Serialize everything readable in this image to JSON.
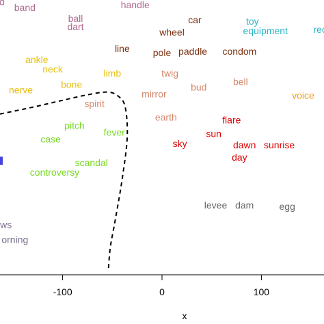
{
  "chart_data": {
    "type": "scatter",
    "xlabel": "x",
    "xlim": [
      -163,
      163
    ],
    "ylim": [
      -100,
      100
    ],
    "x_ticks": [
      -100,
      0,
      100
    ],
    "x_tick_labels": [
      "-100",
      "0",
      "100"
    ],
    "boundary_style": "dashed",
    "points": [
      {
        "label": "d",
        "x": -161,
        "y": 98,
        "color": "#b06a8f"
      },
      {
        "label": "band",
        "x": -138,
        "y": 94,
        "color": "#b06a8f"
      },
      {
        "label": "handle",
        "x": -27,
        "y": 96,
        "color": "#b06a8f"
      },
      {
        "label": "ball",
        "x": -87,
        "y": 86,
        "color": "#b06a8f"
      },
      {
        "label": "dart",
        "x": -87,
        "y": 80,
        "color": "#b06a8f"
      },
      {
        "label": "car",
        "x": 33,
        "y": 85,
        "color": "#7a2f0e"
      },
      {
        "label": "wheel",
        "x": 10,
        "y": 76,
        "color": "#7a2f0e"
      },
      {
        "label": "toy",
        "x": 91,
        "y": 84,
        "color": "#2ab5c8"
      },
      {
        "label": "equipment",
        "x": 104,
        "y": 77,
        "color": "#2ab5c8"
      },
      {
        "label": "rec",
        "x": 159,
        "y": 78,
        "color": "#2ab5c8"
      },
      {
        "label": "line",
        "x": -40,
        "y": 64,
        "color": "#7a2f0e"
      },
      {
        "label": "pole",
        "x": 0,
        "y": 61,
        "color": "#7a2f0e"
      },
      {
        "label": "paddle",
        "x": 31,
        "y": 62,
        "color": "#7a2f0e"
      },
      {
        "label": "condom",
        "x": 78,
        "y": 62,
        "color": "#7a2f0e"
      },
      {
        "label": "ankle",
        "x": -126,
        "y": 56,
        "color": "#e8c00e"
      },
      {
        "label": "neck",
        "x": -110,
        "y": 49,
        "color": "#e8c00e"
      },
      {
        "label": "limb",
        "x": -50,
        "y": 46,
        "color": "#e8c00e"
      },
      {
        "label": "twig",
        "x": 8,
        "y": 46,
        "color": "#d3866a"
      },
      {
        "label": "bone",
        "x": -91,
        "y": 38,
        "color": "#e8c00e"
      },
      {
        "label": "bell",
        "x": 79,
        "y": 40,
        "color": "#d3866a"
      },
      {
        "label": "bud",
        "x": 37,
        "y": 36,
        "color": "#d3866a"
      },
      {
        "label": "nerve",
        "x": -142,
        "y": 34,
        "color": "#e8c00e"
      },
      {
        "label": "mirror",
        "x": -8,
        "y": 31,
        "color": "#d3866a"
      },
      {
        "label": "voice",
        "x": 142,
        "y": 30,
        "color": "#ee9a0e"
      },
      {
        "label": "spirit",
        "x": -68,
        "y": 24,
        "color": "#d3866a"
      },
      {
        "label": "earth",
        "x": 4,
        "y": 14,
        "color": "#d3866a"
      },
      {
        "label": "flare",
        "x": 70,
        "y": 12,
        "color": "#dd0000"
      },
      {
        "label": "pitch",
        "x": -88,
        "y": 8,
        "color": "#77d822"
      },
      {
        "label": "fever",
        "x": -48,
        "y": 3,
        "color": "#77d822"
      },
      {
        "label": "sun",
        "x": 52,
        "y": 2,
        "color": "#dd0000"
      },
      {
        "label": "case",
        "x": -112,
        "y": -2,
        "color": "#77d822"
      },
      {
        "label": "sky",
        "x": 18,
        "y": -5,
        "color": "#dd0000"
      },
      {
        "label": "dawn",
        "x": 83,
        "y": -6,
        "color": "#dd0000"
      },
      {
        "label": "sunrise",
        "x": 118,
        "y": -6,
        "color": "#dd0000"
      },
      {
        "label": "day",
        "x": 78,
        "y": -15,
        "color": "#dd0000"
      },
      {
        "label": "scandal",
        "x": -71,
        "y": -19,
        "color": "#77d822"
      },
      {
        "label": "controversy",
        "x": -108,
        "y": -26,
        "color": "#77d822"
      },
      {
        "label": "levee",
        "x": 54,
        "y": -50,
        "color": "#666666"
      },
      {
        "label": "dam",
        "x": 83,
        "y": -50,
        "color": "#666666"
      },
      {
        "label": "egg",
        "x": 126,
        "y": -51,
        "color": "#666666"
      },
      {
        "label": "ws",
        "x": -157,
        "y": -64,
        "color": "#7a6f8c"
      },
      {
        "label": "orning",
        "x": -148,
        "y": -75,
        "color": "#7a6f8c"
      }
    ],
    "boundary": [
      [
        -163,
        17
      ],
      [
        -130,
        22
      ],
      [
        -100,
        27
      ],
      [
        -75,
        31
      ],
      [
        -55,
        33
      ],
      [
        -44,
        30
      ],
      [
        -37,
        22
      ],
      [
        -35,
        0
      ],
      [
        -40,
        -30
      ],
      [
        -47,
        -60
      ],
      [
        -52,
        -80
      ],
      [
        -54,
        -97
      ]
    ],
    "edge_marker": {
      "x": -163,
      "y": -17,
      "color": "#4444dd"
    }
  }
}
